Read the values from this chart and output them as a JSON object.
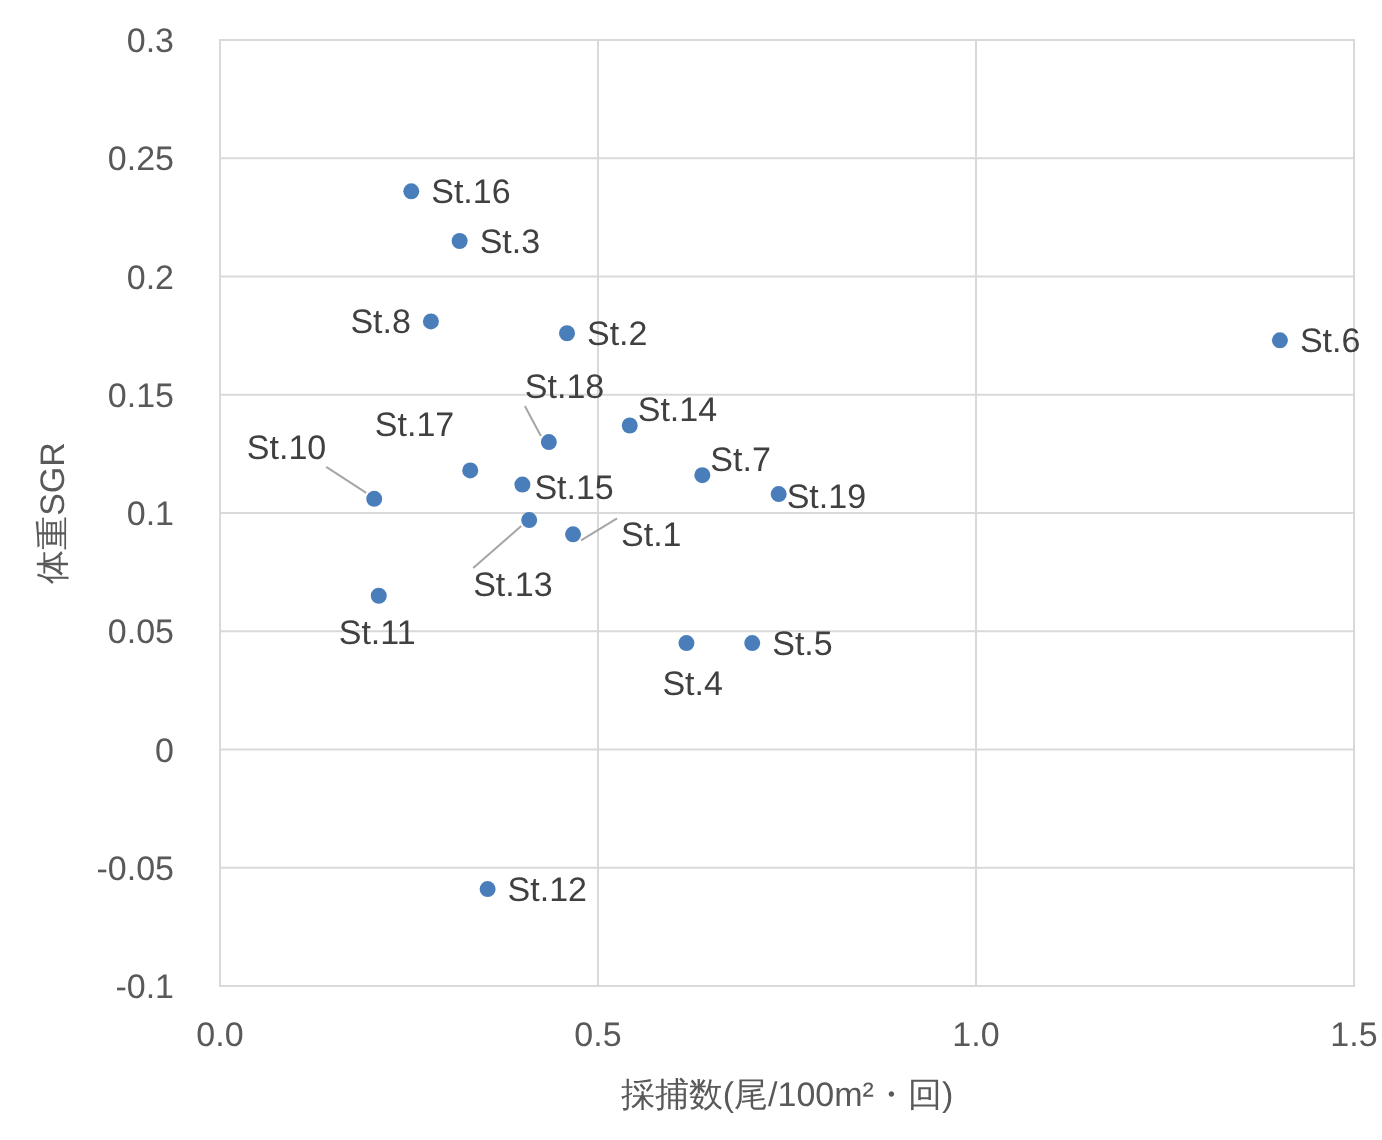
{
  "chart_data": {
    "type": "scatter",
    "xlabel": "採捕数(尾/100m²・回)",
    "ylabel": "体重SGR",
    "x": [
      0.467,
      0.459,
      0.317,
      0.617,
      0.704,
      1.402,
      0.638,
      0.279,
      0.204,
      0.21,
      0.354,
      0.409,
      0.542,
      0.4,
      0.253,
      0.331,
      0.435,
      0.739
    ],
    "values": [
      0.091,
      0.176,
      0.215,
      0.045,
      0.045,
      0.173,
      0.116,
      0.181,
      0.106,
      0.065,
      -0.059,
      0.097,
      0.137,
      0.112,
      0.236,
      0.118,
      0.13,
      0.108
    ],
    "color": "#4a7ebb",
    "marker": "circle",
    "xlim": [
      0,
      1.5
    ],
    "xticks": [
      {
        "value": 0,
        "label": "0.0"
      },
      {
        "value": 0.5,
        "label": "0.5"
      },
      {
        "value": 1,
        "label": "1.0"
      },
      {
        "value": 1.5,
        "label": "1.5"
      }
    ],
    "ylim": [
      -0.1,
      0.3
    ],
    "yticks": [
      -0.1,
      -0.05,
      0,
      0.05,
      0.1,
      0.15,
      0.2,
      0.25,
      0.3
    ],
    "grid": true,
    "annotations": [
      {
        "text": "St.1",
        "x": 0.467,
        "y": 0.091
      },
      {
        "text": "St.2",
        "x": 0.459,
        "y": 0.176
      },
      {
        "text": "St.3",
        "x": 0.317,
        "y": 0.215
      },
      {
        "text": "St.4",
        "x": 0.617,
        "y": 0.045
      },
      {
        "text": "St.5",
        "x": 0.704,
        "y": 0.045
      },
      {
        "text": "St.6",
        "x": 1.402,
        "y": 0.173
      },
      {
        "text": "St.7",
        "x": 0.638,
        "y": 0.116
      },
      {
        "text": "St.8",
        "x": 0.279,
        "y": 0.181
      },
      {
        "text": "St.10",
        "x": 0.204,
        "y": 0.106
      },
      {
        "text": "St.11",
        "x": 0.21,
        "y": 0.065
      },
      {
        "text": "St.12",
        "x": 0.354,
        "y": -0.059
      },
      {
        "text": "St.13",
        "x": 0.409,
        "y": 0.097
      },
      {
        "text": "St.14",
        "x": 0.542,
        "y": 0.137
      },
      {
        "text": "St.15",
        "x": 0.4,
        "y": 0.112
      },
      {
        "text": "St.16",
        "x": 0.253,
        "y": 0.236
      },
      {
        "text": "St.17",
        "x": 0.331,
        "y": 0.118
      },
      {
        "text": "St.18",
        "x": 0.435,
        "y": 0.13
      },
      {
        "text": "St.19",
        "x": 0.739,
        "y": 0.108
      }
    ]
  }
}
